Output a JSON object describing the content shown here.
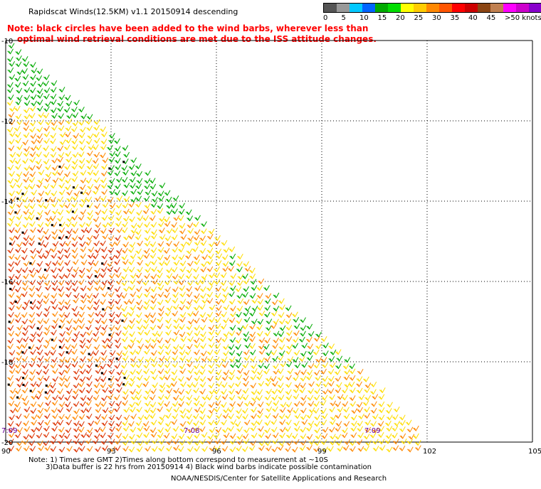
{
  "title": "Rapidscat Winds(12.5KM) v1.1 20150914 descending",
  "note": {
    "line1": "Note: black circles have been added to the wind barbs, wherever less than",
    "line2": "optimal wind retrieval conditions are met due to the ISS attitude changes."
  },
  "legend": {
    "colors": [
      "#555555",
      "#999999",
      "#00c8ff",
      "#0064ff",
      "#00aa00",
      "#00dd00",
      "#ffff00",
      "#ffcc00",
      "#ff8800",
      "#ff5500",
      "#ff0000",
      "#cc0000",
      "#8b4513",
      "#c08050",
      "#ff00ff",
      "#cc00cc",
      "#8800cc",
      "#440088"
    ],
    "labels": [
      "0",
      "5",
      "10",
      "15",
      "20",
      "25",
      "30",
      "35",
      "40",
      "45",
      ">50 knots"
    ]
  },
  "axes": {
    "lat_labels": [
      "-10",
      "-12",
      "-14",
      "-16",
      "-18",
      "-20"
    ],
    "lon_labels": [
      "90",
      "93",
      "96",
      "99",
      "102",
      "105"
    ]
  },
  "times": [
    "7:09",
    "7:08",
    "7:09"
  ],
  "footer": {
    "line1": "Note: 1) Times are GMT 2)Times along bottom correspond to measurement at ~10S",
    "line2": "3)Data buffer is 22 hrs from 20150914 4) Black wind barbs indicate possible contamination",
    "line3": "NOAA/NESDIS/Center for Satellite Applications and Research"
  },
  "wind_zones": {
    "green_color": "#00aa00",
    "yellow_color": "#ffdd00",
    "orange_color": "#ff8800",
    "red_color": "#dd3300"
  }
}
